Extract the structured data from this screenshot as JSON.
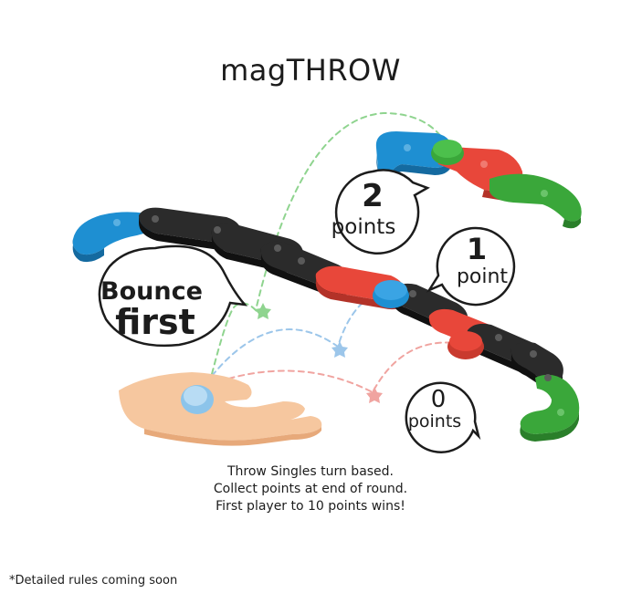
{
  "title": "magTHROW",
  "callouts": {
    "two_points": {
      "number": "2",
      "unit": "points"
    },
    "one_point": {
      "number": "1",
      "unit": "point"
    },
    "zero_points": {
      "number": "0",
      "unit": "points"
    },
    "bounce": {
      "line1": "Bounce",
      "line2": "first"
    }
  },
  "rules": [
    "Throw Singles turn based.",
    "Collect points at end of round.",
    "First player to 10 points wins!"
  ],
  "footnote": "*Detailed rules coming soon",
  "colors": {
    "blue": "#1e8fd2",
    "red": "#e8473a",
    "green": "#3aa73a",
    "black": "#2b2b2b",
    "hand": "#f6c79f",
    "puck": "#a8d4f0"
  }
}
